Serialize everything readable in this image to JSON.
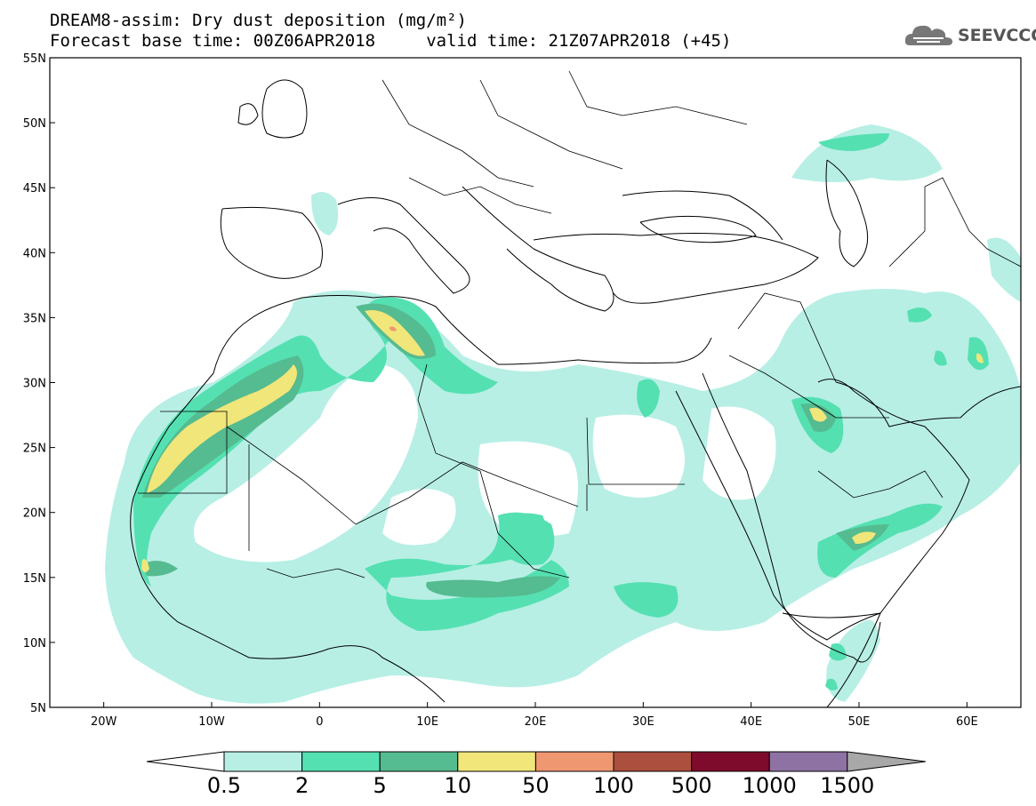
{
  "title": {
    "line1": "DREAM8-assim: Dry dust deposition (mg/m²)",
    "line2": "Forecast base time: 00Z06APR2018     valid time: 21Z07APR2018 (+45)"
  },
  "logo": {
    "text": "SEEVCCC",
    "icon": "cloud-icon"
  },
  "map": {
    "lon_range": [
      -25,
      65
    ],
    "lat_range": [
      5,
      55
    ],
    "x_ticks": [
      {
        "lon": -20,
        "label": "20W"
      },
      {
        "lon": -10,
        "label": "10W"
      },
      {
        "lon": 0,
        "label": "0"
      },
      {
        "lon": 10,
        "label": "10E"
      },
      {
        "lon": 20,
        "label": "20E"
      },
      {
        "lon": 30,
        "label": "30E"
      },
      {
        "lon": 40,
        "label": "40E"
      },
      {
        "lon": 50,
        "label": "50E"
      },
      {
        "lon": 60,
        "label": "60E"
      }
    ],
    "y_ticks": [
      {
        "lat": 55,
        "label": "55N"
      },
      {
        "lat": 50,
        "label": "50N"
      },
      {
        "lat": 45,
        "label": "45N"
      },
      {
        "lat": 40,
        "label": "40N"
      },
      {
        "lat": 35,
        "label": "35N"
      },
      {
        "lat": 30,
        "label": "30N"
      },
      {
        "lat": 25,
        "label": "25N"
      },
      {
        "lat": 20,
        "label": "20N"
      },
      {
        "lat": 15,
        "label": "15N"
      },
      {
        "lat": 10,
        "label": "10N"
      },
      {
        "lat": 5,
        "label": "5N"
      }
    ]
  },
  "colorbar": {
    "levels": [
      "0.5",
      "2",
      "5",
      "10",
      "50",
      "100",
      "500",
      "1000",
      "1500"
    ],
    "colors": [
      "#b7efe5",
      "#55e0b2",
      "#55bb90",
      "#f1e67a",
      "#ee9770",
      "#ad4f3e",
      "#7e0a2c",
      "#8e72a4",
      "#a8a8a8"
    ]
  }
}
